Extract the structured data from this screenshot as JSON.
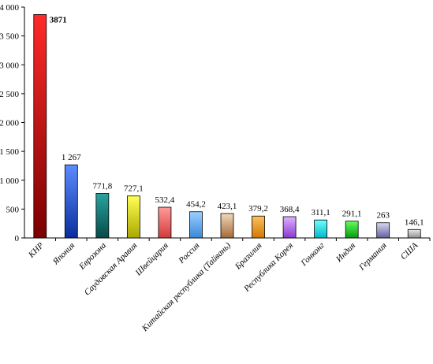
{
  "chart_data": {
    "type": "bar",
    "title": "",
    "xlabel": "",
    "ylabel": "",
    "ylim": [
      0,
      4000
    ],
    "yticks": [
      0,
      500,
      1000,
      1500,
      2000,
      2500,
      3000,
      3500,
      4000
    ],
    "ytick_labels": [
      "0",
      "500",
      "1 000",
      "1 500",
      "2 000",
      "2 500",
      "3 000",
      "3 500",
      "4 000"
    ],
    "grid": false,
    "legend": "none",
    "categories": [
      "КНР",
      "Япония",
      "Еврозона",
      "Саудовская Аравия",
      "Швейцария",
      "Россия",
      "Китайская республика (Тайвань)",
      "Бразилия",
      "Республика Корея",
      "Гонконг",
      "Индия",
      "Германия",
      "США"
    ],
    "values": [
      3871,
      1267,
      771.8,
      727.1,
      532.4,
      454.2,
      423.1,
      379.2,
      368.4,
      311.1,
      291.1,
      263,
      146.1
    ],
    "value_labels": [
      "3871",
      "1 267",
      "771,8",
      "727,1",
      "532,4",
      "454,2",
      "423,1",
      "379,2",
      "368,4",
      "311,1",
      "291,1",
      "263",
      "146,1"
    ],
    "colors": [
      [
        "#ff2a2a",
        "#7a0000"
      ],
      [
        "#5c8cff",
        "#0a2d9c"
      ],
      [
        "#2aa3a0",
        "#064a48"
      ],
      [
        "#ffff55",
        "#a8a800"
      ],
      [
        "#ff9a9a",
        "#d23a3a"
      ],
      [
        "#9ad0ff",
        "#3a86d8"
      ],
      [
        "#f2d8b8",
        "#a26a3a"
      ],
      [
        "#ffc060",
        "#d07800"
      ],
      [
        "#e0b0ff",
        "#8a3ad0"
      ],
      [
        "#70ffff",
        "#00b8c8"
      ],
      [
        "#60ff60",
        "#0a9a0a"
      ],
      [
        "#d8d8f0",
        "#6060a0"
      ],
      [
        "#e8e8e8",
        "#909090"
      ]
    ]
  }
}
